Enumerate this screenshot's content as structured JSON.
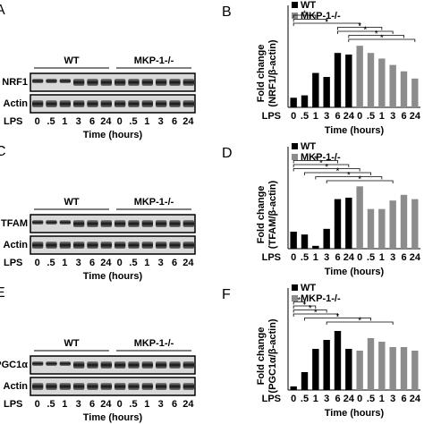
{
  "chart_data": [
    {
      "type": "bar",
      "panel": "B",
      "ylabel": [
        "Fold change",
        "(NRF1/β-actin)"
      ],
      "x_prefix": "LPS",
      "xlabel": "Time (hours)",
      "categories": [
        "0",
        ".5",
        "1",
        "3",
        "6",
        "24",
        "0",
        ".5",
        "1",
        "3",
        "6",
        "24"
      ],
      "series": [
        {
          "name": "WT",
          "color": "#000000",
          "values": [
            1.2,
            1.5,
            4.3,
            3.8,
            6.8,
            6.6,
            null,
            null,
            null,
            null,
            null,
            null
          ]
        },
        {
          "name": "MKP-1-/-",
          "color": "#8c8c8c",
          "values": [
            null,
            null,
            null,
            null,
            null,
            null,
            7.7,
            6.8,
            6.1,
            5.3,
            4.5,
            3.6
          ]
        }
      ],
      "ylim": [
        0,
        8.5
      ],
      "annotations": [
        {
          "text": "*",
          "categories": [
            0,
            2
          ]
        },
        {
          "text": "*",
          "categories": [
            0,
            3
          ]
        },
        {
          "text": "*",
          "categories": [
            0,
            6
          ]
        },
        {
          "text": "*",
          "categories": [
            4,
            8
          ]
        },
        {
          "text": "*",
          "categories": [
            4,
            9
          ]
        },
        {
          "text": "*",
          "categories": [
            5,
            10
          ]
        },
        {
          "text": "*",
          "categories": [
            5,
            11
          ]
        }
      ]
    },
    {
      "type": "bar",
      "panel": "D",
      "ylabel": [
        "Fold change",
        "(TFAM/β-actin)"
      ],
      "x_prefix": "LPS",
      "xlabel": "Time (hours)",
      "categories": [
        "0",
        ".5",
        "1",
        "3",
        "6",
        "24",
        "0",
        ".5",
        "1",
        "3",
        "6",
        "24"
      ],
      "series": [
        {
          "name": "WT",
          "color": "#000000",
          "values": [
            6,
            5,
            1,
            7,
            17.5,
            18,
            null,
            null,
            null,
            null,
            null,
            null
          ]
        },
        {
          "name": "MKP-1-/-",
          "color": "#8c8c8c",
          "values": [
            null,
            null,
            null,
            null,
            null,
            null,
            22,
            14,
            14,
            17,
            19,
            17.5
          ]
        }
      ],
      "ylim": [
        0,
        24
      ],
      "annotations": [
        {
          "text": "*",
          "categories": [
            0,
            4
          ]
        },
        {
          "text": "*",
          "categories": [
            0,
            5
          ]
        },
        {
          "text": "*",
          "categories": [
            0,
            6
          ]
        },
        {
          "text": "*",
          "categories": [
            1,
            7
          ]
        },
        {
          "text": "*",
          "categories": [
            2,
            8
          ]
        },
        {
          "text": "*",
          "categories": [
            3,
            9
          ]
        }
      ]
    },
    {
      "type": "bar",
      "panel": "F",
      "ylabel": [
        "Fold change",
        "(PGC1α/β-actin)"
      ],
      "x_prefix": "LPS",
      "xlabel": "Time (hours)",
      "categories": [
        "0",
        ".5",
        "1",
        "3",
        "6",
        "24",
        "0",
        ".5",
        "1",
        "3",
        "6",
        "24"
      ],
      "series": [
        {
          "name": "WT",
          "color": "#000000",
          "values": [
            1,
            5,
            11.5,
            14,
            16.5,
            11.5,
            null,
            null,
            null,
            null,
            null,
            null
          ]
        },
        {
          "name": "MKP-1-/-",
          "color": "#8c8c8c",
          "values": [
            null,
            null,
            null,
            null,
            null,
            null,
            11,
            14.5,
            13.5,
            12,
            12,
            11
          ]
        }
      ],
      "ylim": [
        0,
        19
      ],
      "annotations": [
        {
          "text": "*",
          "categories": [
            0,
            1
          ]
        },
        {
          "text": "*",
          "categories": [
            0,
            2
          ]
        },
        {
          "text": "*",
          "categories": [
            0,
            3
          ]
        },
        {
          "text": "*",
          "categories": [
            0,
            4
          ]
        },
        {
          "text": "*",
          "categories": [
            1,
            7
          ]
        },
        {
          "text": "*",
          "categories": [
            3,
            9
          ]
        }
      ]
    }
  ],
  "blots": [
    {
      "panel": "A",
      "rows": [
        "NRF1",
        "Actin"
      ]
    },
    {
      "panel": "C",
      "rows": [
        "TFAM",
        "Actin"
      ]
    },
    {
      "panel": "E",
      "rows": [
        "PGC1α",
        "Actin"
      ]
    }
  ]
}
